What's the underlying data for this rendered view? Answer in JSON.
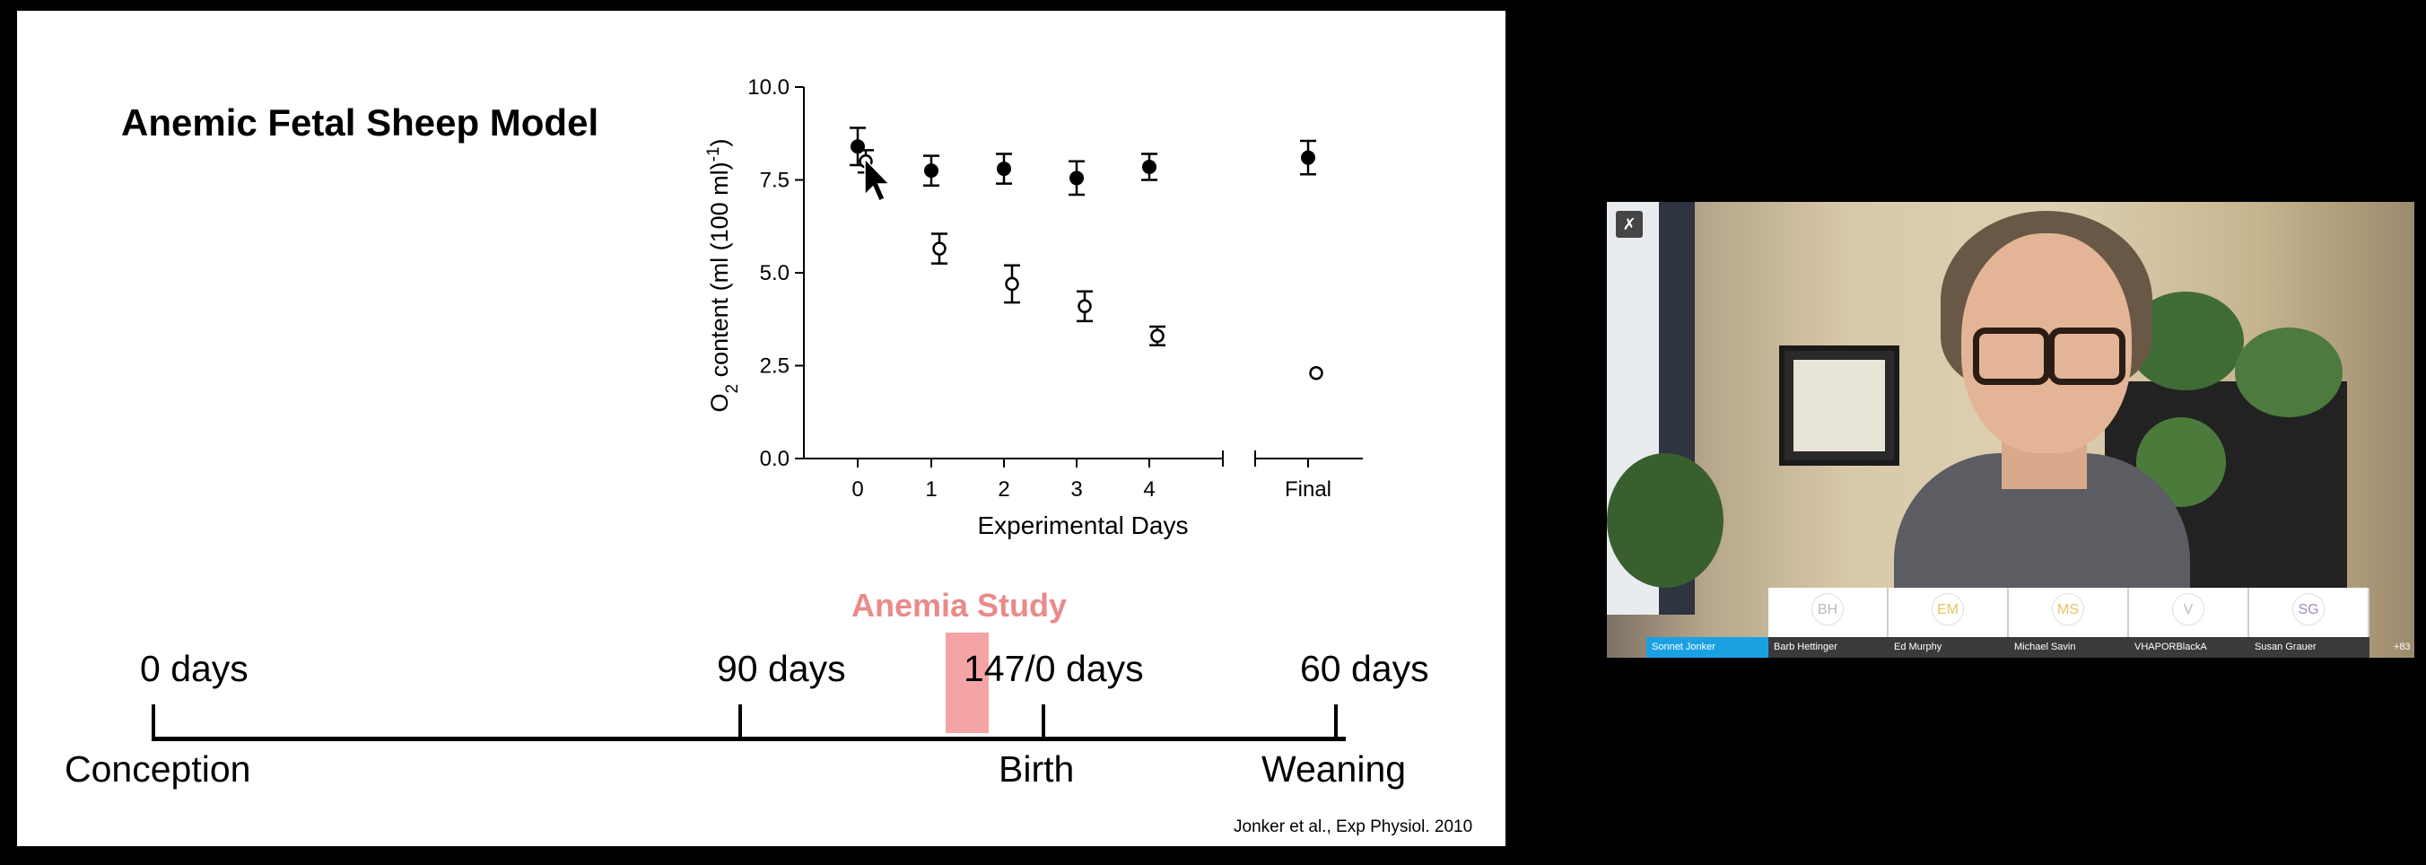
{
  "slide": {
    "title": "Anemic Fetal Sheep Model",
    "citation": "Jonker et al., Exp Physiol. 2010",
    "anemia_label": "Anemia Study",
    "timeline": {
      "labels_top": [
        "0 days",
        "90 days",
        "147/0 days",
        "60 days"
      ],
      "labels_bottom": [
        "Conception",
        "Birth",
        "Weaning"
      ]
    }
  },
  "chart_data": {
    "type": "scatter",
    "xlabel": "Experimental Days",
    "ylabel": "O2 content (ml (100 ml)-1)",
    "ylabel_parts": {
      "o": "O",
      "sub": "2",
      "rest": " content (ml (100 ml)",
      "sup": "-1",
      "end": ")"
    },
    "ylim": [
      0,
      10
    ],
    "yticks": [
      "0.0",
      "2.5",
      "5.0",
      "7.5",
      "10.0"
    ],
    "categories": [
      "0",
      "1",
      "2",
      "3",
      "4",
      "Final"
    ],
    "series": [
      {
        "marker": "filled",
        "y": [
          8.4,
          7.75,
          7.8,
          7.55,
          7.85,
          8.1
        ],
        "err": [
          0.5,
          0.4,
          0.4,
          0.45,
          0.35,
          0.45
        ]
      },
      {
        "marker": "open",
        "y": [
          8.0,
          5.65,
          4.7,
          4.1,
          3.3,
          2.3
        ],
        "err": [
          0.3,
          0.4,
          0.5,
          0.4,
          0.25,
          0.0
        ]
      }
    ],
    "grid": false,
    "axis_break": true
  },
  "video": {
    "participants": [
      {
        "initials": "",
        "name": "Sonnet Jonker",
        "active": true
      },
      {
        "initials": "BH",
        "name": "Barb Hettinger",
        "color": "#bbbbbb"
      },
      {
        "initials": "EM",
        "name": "Ed Murphy",
        "color": "#e8c35a"
      },
      {
        "initials": "MS",
        "name": "Michael Savin",
        "color": "#e8c35a"
      },
      {
        "initials": "V",
        "name": "VHAPORBlackA",
        "color": "#bbbbbb"
      },
      {
        "initials": "SG",
        "name": "Susan Grauer",
        "color": "#a88ab8"
      }
    ],
    "more_count": "+83",
    "mute_icon": "mic-off-icon"
  }
}
